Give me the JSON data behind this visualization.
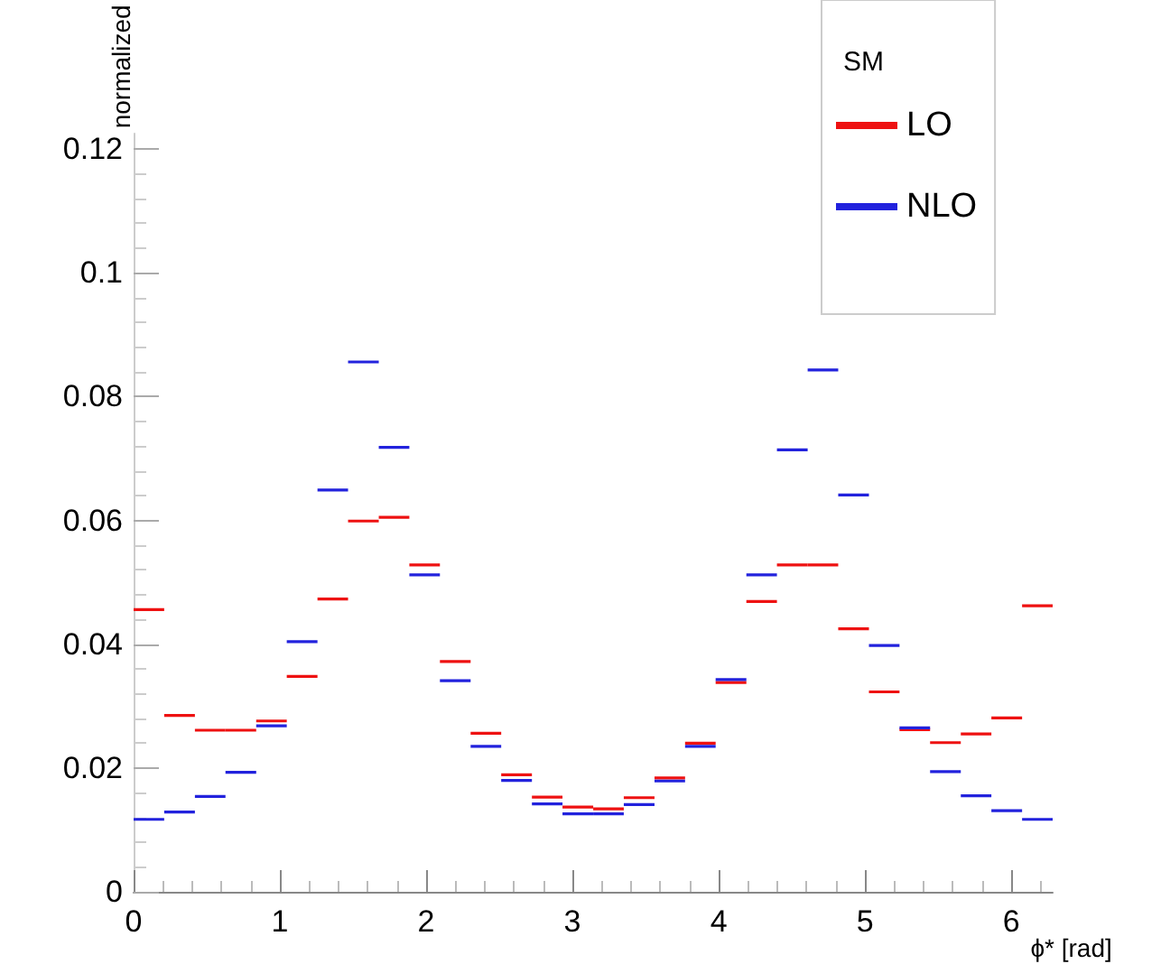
{
  "chart_data": {
    "type": "histogram",
    "xlabel": "ϕ* [rad]",
    "ylabel": "normalized",
    "legend_title": "SM",
    "bins": [
      0,
      0.209,
      0.419,
      0.628,
      0.838,
      1.047,
      1.257,
      1.466,
      1.676,
      1.885,
      2.094,
      2.304,
      2.513,
      2.723,
      2.932,
      3.142,
      3.351,
      3.561,
      3.77,
      3.979,
      4.189,
      4.398,
      4.608,
      4.817,
      5.027,
      5.236,
      5.445,
      5.655,
      5.864,
      6.074,
      6.283
    ],
    "series": [
      {
        "name": "LO",
        "color": "#ee1111",
        "values": [
          0.0456,
          0.0285,
          0.0261,
          0.0261,
          0.0276,
          0.0348,
          0.0473,
          0.0599,
          0.0605,
          0.0528,
          0.0372,
          0.0256,
          0.0189,
          0.0153,
          0.0137,
          0.0134,
          0.0152,
          0.0184,
          0.024,
          0.0338,
          0.0469,
          0.0528,
          0.0528,
          0.0425,
          0.0323,
          0.0262,
          0.0241,
          0.0255,
          0.0281,
          0.0462
        ]
      },
      {
        "name": "NLO",
        "color": "#2222dd",
        "values": [
          0.0117,
          0.0129,
          0.0154,
          0.0193,
          0.0268,
          0.0404,
          0.0649,
          0.0856,
          0.0718,
          0.0512,
          0.0341,
          0.0235,
          0.018,
          0.0142,
          0.0126,
          0.0126,
          0.0141,
          0.0179,
          0.0235,
          0.0343,
          0.0512,
          0.0714,
          0.0843,
          0.0641,
          0.0398,
          0.0265,
          0.0194,
          0.0155,
          0.0131,
          0.0117
        ]
      }
    ],
    "xlim": [
      0,
      6.283
    ],
    "xticks": [
      0,
      1,
      2,
      3,
      4,
      5,
      6
    ],
    "ylim": [
      0,
      0.1225
    ],
    "yticks": [
      0,
      0.02,
      0.04,
      0.06,
      0.08,
      0.1,
      0.12
    ],
    "grid": false,
    "legend": "top right"
  }
}
